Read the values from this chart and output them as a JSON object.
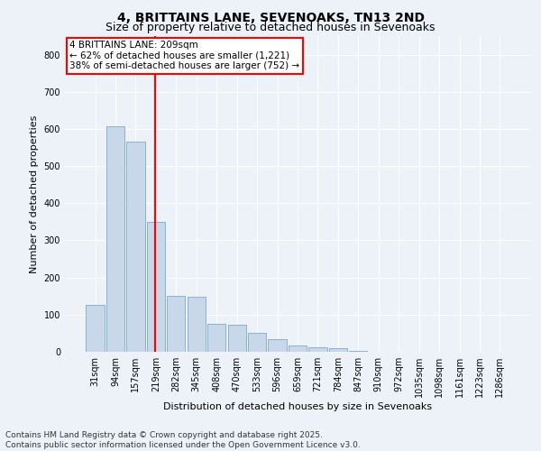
{
  "title": "4, BRITTAINS LANE, SEVENOAKS, TN13 2ND",
  "subtitle": "Size of property relative to detached houses in Sevenoaks",
  "xlabel": "Distribution of detached houses by size in Sevenoaks",
  "ylabel": "Number of detached properties",
  "bar_color": "#c8d8ea",
  "bar_edge_color": "#7aaac8",
  "vline_color": "red",
  "vline_x_index": 3,
  "annotation_text": "4 BRITTAINS LANE: 209sqm\n← 62% of detached houses are smaller (1,221)\n38% of semi-detached houses are larger (752) →",
  "annotation_box_color": "white",
  "annotation_box_edge": "red",
  "categories": [
    "31sqm",
    "94sqm",
    "157sqm",
    "219sqm",
    "282sqm",
    "345sqm",
    "408sqm",
    "470sqm",
    "533sqm",
    "596sqm",
    "659sqm",
    "721sqm",
    "784sqm",
    "847sqm",
    "910sqm",
    "972sqm",
    "1035sqm",
    "1098sqm",
    "1161sqm",
    "1223sqm",
    "1286sqm"
  ],
  "values": [
    127,
    607,
    567,
    350,
    150,
    148,
    75,
    72,
    50,
    35,
    18,
    12,
    10,
    2,
    0,
    0,
    0,
    0,
    0,
    0,
    0
  ],
  "ylim": [
    0,
    850
  ],
  "yticks": [
    0,
    100,
    200,
    300,
    400,
    500,
    600,
    700,
    800
  ],
  "background_color": "#edf2f8",
  "grid_color": "#ffffff",
  "footer_text": "Contains HM Land Registry data © Crown copyright and database right 2025.\nContains public sector information licensed under the Open Government Licence v3.0.",
  "title_fontsize": 10,
  "subtitle_fontsize": 9,
  "xlabel_fontsize": 8,
  "ylabel_fontsize": 8,
  "tick_fontsize": 7,
  "footer_fontsize": 6.5,
  "annotation_fontsize": 7.5
}
